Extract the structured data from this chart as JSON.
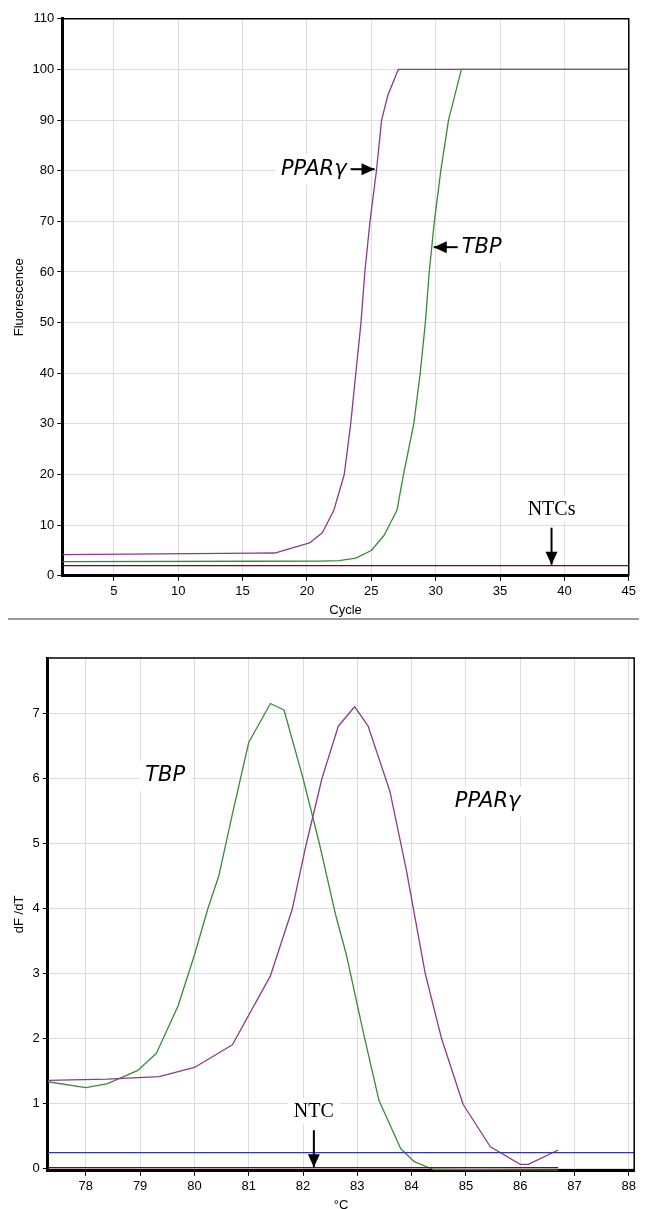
{
  "chart_data": [
    {
      "type": "line",
      "xlabel": "Cycle",
      "ylabel": "Fluorescence",
      "xlim": [
        1,
        45
      ],
      "xticks": [
        5,
        10,
        15,
        20,
        25,
        30,
        35,
        40,
        45
      ],
      "ylim": [
        0,
        110
      ],
      "yticks": [
        0,
        10,
        20,
        30,
        40,
        50,
        60,
        70,
        80,
        90,
        100,
        110
      ],
      "grid": true,
      "legend": false,
      "marker": "none",
      "line_style": "solid",
      "series": [
        {
          "name": "PPARγ",
          "color": "#8b3a8b",
          "x": [
            1,
            17.5,
            20.2,
            21.2,
            22.1,
            22.9,
            23.4,
            23.8,
            24.2,
            24.5,
            24.9,
            25.4,
            25.8,
            26.3,
            27.1,
            45
          ],
          "values": [
            4.2,
            4.5,
            6.5,
            8.5,
            13,
            20,
            30,
            40,
            50,
            60,
            70,
            80,
            90,
            95,
            100,
            100
          ]
        },
        {
          "name": "TBP",
          "color": "#3a8a3a",
          "x": [
            1,
            21,
            22.5,
            23.8,
            25,
            26,
            27,
            27.5,
            28.3,
            28.8,
            29.2,
            29.5,
            29.9,
            30.4,
            31,
            32,
            45
          ],
          "values": [
            2.8,
            2.9,
            3,
            3.5,
            5,
            8,
            13,
            20,
            30,
            40,
            50,
            60,
            70,
            80,
            90,
            100,
            100
          ]
        },
        {
          "color": "#800020",
          "x": [
            1,
            45
          ],
          "values": [
            2,
            2
          ]
        }
      ],
      "annotations": [
        {
          "text": "NTCs",
          "x": 39,
          "y": 2
        }
      ]
    },
    {
      "type": "line",
      "xlabel": "°C",
      "ylabel": "dF /dT",
      "xlim": [
        77.3,
        88.1
      ],
      "xticks": [
        78,
        79,
        80,
        81,
        82,
        83,
        84,
        85,
        86,
        87,
        88
      ],
      "ylim": [
        -0.04,
        7.85
      ],
      "yticks": [
        0,
        1,
        2,
        3,
        4,
        5,
        6,
        7
      ],
      "grid": true,
      "legend": false,
      "marker": "none",
      "line_style": "solid",
      "series": [
        {
          "name": "TBP",
          "color": "#3a8a3a",
          "x": [
            77.3,
            78,
            78.4,
            78.95,
            79.3,
            79.7,
            80,
            80.25,
            80.45,
            80.7,
            81,
            81.4,
            81.65,
            82,
            82.3,
            82.6,
            82.8,
            83.1,
            83.4,
            83.8,
            84.05,
            84.4,
            86.7
          ],
          "values": [
            1.33,
            1.24,
            1.3,
            1.5,
            1.77,
            2.5,
            3.28,
            4,
            4.5,
            5.45,
            6.55,
            7.15,
            7.05,
            6,
            5,
            3.9,
            3.28,
            2.13,
            1.04,
            0.3,
            0.1,
            -0.02,
            -0.03
          ]
        },
        {
          "name": "PPARγ",
          "color": "#8b3a8b",
          "x": [
            77.3,
            78.4,
            79.35,
            80,
            80.7,
            81.4,
            81.8,
            82.05,
            82.35,
            82.65,
            82.95,
            83.2,
            83.6,
            83.9,
            84.25,
            84.55,
            84.95,
            85.45,
            86,
            86.15,
            86.7
          ],
          "values": [
            1.35,
            1.37,
            1.41,
            1.55,
            1.9,
            2.96,
            3.98,
            4.95,
            6,
            6.8,
            7.1,
            6.8,
            5.8,
            4.6,
            3,
            2,
            0.98,
            0.33,
            0.06,
            0.06,
            0.28
          ]
        },
        {
          "color": "#800020",
          "x": [
            77.3,
            86.7
          ],
          "values": [
            0.01,
            0.01
          ]
        }
      ],
      "ref_lines": [
        {
          "axis": "y",
          "value": 0.24,
          "color": "#3333aa"
        }
      ],
      "annotations": [
        {
          "text": "NTC",
          "x": 82.2,
          "y": 0
        }
      ]
    }
  ]
}
